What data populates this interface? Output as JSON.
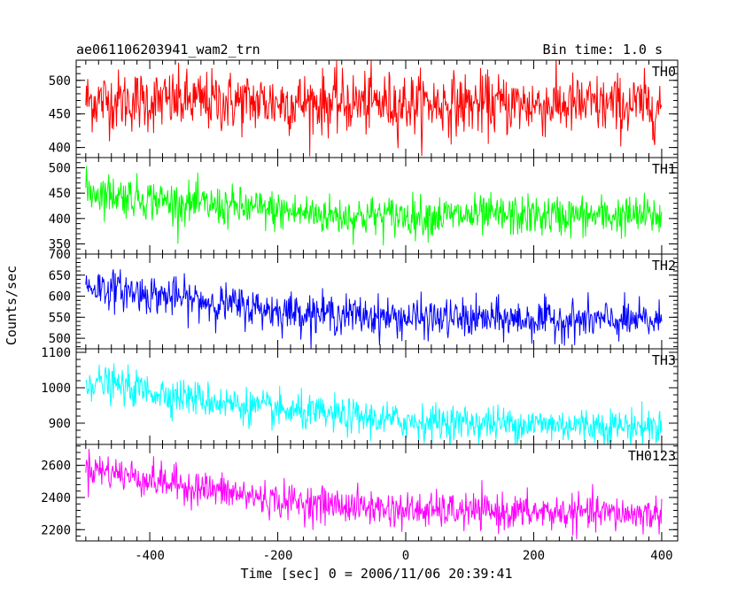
{
  "header": {
    "title": "ae061106203941_wam2_trn",
    "bin_time": "Bin time: 1.0 s"
  },
  "chart_data": {
    "type": "line",
    "title": "ae061106203941_wam2_trn",
    "xlabel": "Time [sec] 0 = 2006/11/06 20:39:41",
    "ylabel": "Counts/sec",
    "xlim": [
      -515,
      425
    ],
    "x_ticks": [
      -400,
      -200,
      0,
      200,
      400
    ],
    "x_range": [
      -500,
      400
    ],
    "bin_seconds": 1.0,
    "grid": false,
    "panels": [
      {
        "name": "TH0",
        "color": "#ff0000",
        "ylim": [
          385,
          530
        ],
        "y_ticks": [
          400,
          450,
          500
        ],
        "trend": [
          [
            -500,
            470
          ],
          [
            400,
            462
          ]
        ],
        "noise_sd": 23
      },
      {
        "name": "TH1",
        "color": "#00ff00",
        "ylim": [
          330,
          520
        ],
        "y_ticks": [
          350,
          400,
          450,
          500
        ],
        "trend": [
          [
            -500,
            455
          ],
          [
            -350,
            430
          ],
          [
            -100,
            405
          ],
          [
            400,
            405
          ]
        ],
        "noise_sd": 20
      },
      {
        "name": "TH2",
        "color": "#0000ff",
        "ylim": [
          475,
          700
        ],
        "y_ticks": [
          500,
          550,
          600,
          650,
          700
        ],
        "trend": [
          [
            -500,
            625
          ],
          [
            -400,
            605
          ],
          [
            -200,
            565
          ],
          [
            0,
            548
          ],
          [
            400,
            540
          ]
        ],
        "noise_sd": 23
      },
      {
        "name": "TH3",
        "color": "#00ffff",
        "ylim": [
          840,
          1110
        ],
        "y_ticks": [
          900,
          1000,
          1100
        ],
        "trend": [
          [
            -500,
            1020
          ],
          [
            -400,
            990
          ],
          [
            -200,
            935
          ],
          [
            0,
            905
          ],
          [
            400,
            890
          ]
        ],
        "noise_sd": 25
      },
      {
        "name": "TH0123",
        "color": "#ff00ff",
        "ylim": [
          2130,
          2730
        ],
        "y_ticks": [
          2200,
          2400,
          2600
        ],
        "trend": [
          [
            -500,
            2590
          ],
          [
            -400,
            2510
          ],
          [
            -200,
            2380
          ],
          [
            0,
            2320
          ],
          [
            400,
            2295
          ]
        ],
        "noise_sd": 55
      }
    ]
  }
}
